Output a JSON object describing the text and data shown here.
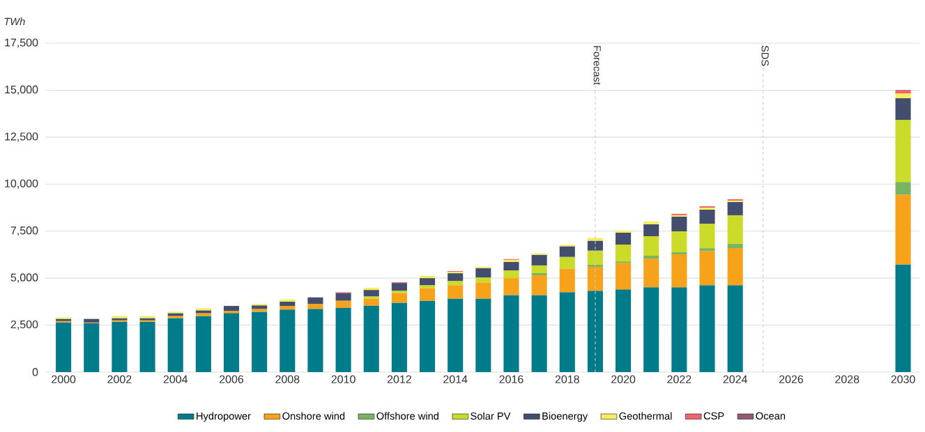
{
  "chart_data": {
    "type": "bar",
    "stacked": true,
    "ylabel": "TWh",
    "x": [
      2000,
      2001,
      2002,
      2003,
      2004,
      2005,
      2006,
      2007,
      2008,
      2009,
      2010,
      2011,
      2012,
      2013,
      2014,
      2015,
      2016,
      2017,
      2018,
      2019,
      2020,
      2021,
      2022,
      2023,
      2024,
      2030
    ],
    "xlim": [
      1999.35,
      2030.6
    ],
    "xticks": [
      2000,
      2002,
      2004,
      2006,
      2008,
      2010,
      2012,
      2014,
      2016,
      2018,
      2020,
      2022,
      2024,
      2026,
      2028,
      2030
    ],
    "ylim": [
      0,
      17500
    ],
    "yticks": [
      0,
      {
        "value": 2500,
        "label": "2,500"
      },
      {
        "value": 5000,
        "label": "5,000"
      },
      {
        "value": 7500,
        "label": "7,500"
      },
      {
        "value": 10000,
        "label": "10,000"
      },
      {
        "value": 12500,
        "label": "12,500"
      },
      {
        "value": 15000,
        "label": "15,000"
      },
      {
        "value": 17500,
        "label": "17,500"
      }
    ],
    "grid": "y",
    "legend": "bottom",
    "ref_lines": [
      {
        "axis": "x",
        "value": 2019,
        "label": "Forecast",
        "color": "#cccccc",
        "line_style": "dashed"
      },
      {
        "axis": "x",
        "value": 2025,
        "label": "SDS",
        "color": "#cccccc",
        "line_style": "dashed"
      }
    ],
    "series": [
      {
        "name": "Hydropower",
        "color": "#007b8a",
        "values": [
          2640,
          2600,
          2680,
          2680,
          2870,
          2985,
          3140,
          3210,
          3330,
          3365,
          3425,
          3540,
          3690,
          3800,
          3910,
          3910,
          4100,
          4100,
          4250,
          4325,
          4400,
          4515,
          4515,
          4625,
          4625,
          5730
        ]
      },
      {
        "name": "Onshore wind",
        "color": "#f7a21b",
        "values": [
          76,
          38,
          76,
          76,
          115,
          150,
          115,
          150,
          190,
          265,
          375,
          375,
          525,
          675,
          715,
          860,
          900,
          1050,
          1240,
          1275,
          1415,
          1525,
          1750,
          1820,
          1970,
          3715
        ]
      },
      {
        "name": "Offshore wind",
        "color": "#78b462",
        "values": [
          null,
          null,
          null,
          null,
          null,
          null,
          null,
          null,
          null,
          null,
          null,
          null,
          null,
          null,
          null,
          null,
          null,
          115,
          null,
          115,
          75,
          150,
          110,
          150,
          225,
          670
        ]
      },
      {
        "name": "Solar PV",
        "color": "#cbdb2a",
        "values": [
          null,
          null,
          null,
          null,
          null,
          null,
          null,
          null,
          null,
          null,
          null,
          115,
          115,
          150,
          225,
          265,
          410,
          410,
          640,
          750,
          895,
          1040,
          1115,
          1300,
          1525,
          3305
        ]
      },
      {
        "name": "Bioenergy",
        "color": "#434d6e",
        "values": [
          115,
          190,
          115,
          115,
          150,
          150,
          265,
          190,
          230,
          345,
          410,
          340,
          410,
          375,
          410,
          490,
          450,
          565,
          565,
          525,
          630,
          630,
          780,
          745,
          705,
          1150
        ]
      },
      {
        "name": "Geothermal",
        "color": "#f6ee5f",
        "values": [
          76,
          null,
          115,
          115,
          76,
          115,
          null,
          76,
          115,
          null,
          null,
          115,
          null,
          115,
          75,
          75,
          115,
          75,
          75,
          150,
          110,
          150,
          75,
          110,
          75,
          260
        ]
      },
      {
        "name": "CSP",
        "color": "#ee6470",
        "values": [
          null,
          null,
          null,
          null,
          null,
          null,
          null,
          null,
          null,
          null,
          40,
          null,
          40,
          null,
          40,
          null,
          40,
          null,
          null,
          null,
          null,
          null,
          75,
          75,
          75,
          185
        ]
      },
      {
        "name": "Ocean",
        "color": "#935a74",
        "values": [
          null,
          null,
          null,
          null,
          null,
          null,
          null,
          null,
          null,
          null,
          null,
          null,
          null,
          null,
          null,
          null,
          null,
          null,
          null,
          null,
          null,
          null,
          null,
          null,
          null,
          null
        ]
      }
    ]
  }
}
